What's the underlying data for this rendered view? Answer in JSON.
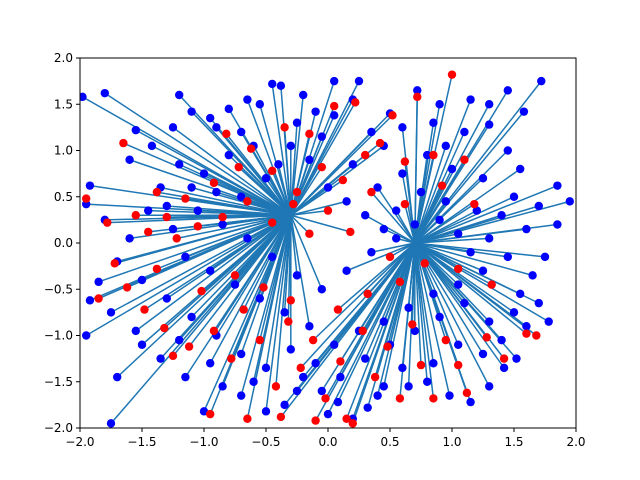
{
  "chart_data": {
    "type": "scatter",
    "title": "",
    "xlabel": "",
    "ylabel": "",
    "xlim": [
      -2.0,
      2.0
    ],
    "ylim": [
      -2.0,
      2.0
    ],
    "grid": false,
    "legend": null,
    "x_ticks": [
      "−2.0",
      "−1.5",
      "−1.0",
      "−0.5",
      "0.0",
      "0.5",
      "1.0",
      "1.5",
      "2.0"
    ],
    "y_ticks": [
      "−2.0",
      "−1.5",
      "−1.0",
      "−0.5",
      "0.0",
      "0.5",
      "1.0",
      "1.5",
      "2.0"
    ],
    "colors": {
      "line": "#1f77b4",
      "blue_points": "#0000ff",
      "red_points": "#ff0000"
    },
    "segments_note": "Each point is joined by a line to one of two hub points (near (0.7, 0.0) and (-0.3, 0.3)); line ends extend beyond the axes.",
    "hubs": [
      [
        0.7,
        0.0
      ],
      [
        -0.3,
        0.3
      ]
    ],
    "series": [
      {
        "name": "",
        "color": "#0000ff",
        "points": [
          [
            -1.98,
            1.58
          ],
          [
            -1.8,
            1.62
          ],
          [
            -1.55,
            1.22
          ],
          [
            -1.42,
            1.05
          ],
          [
            -1.2,
            1.6
          ],
          [
            -1.1,
            1.42
          ],
          [
            -0.95,
            1.35
          ],
          [
            -0.8,
            1.45
          ],
          [
            -0.7,
            1.2
          ],
          [
            -0.55,
            1.5
          ],
          [
            -0.45,
            1.72
          ],
          [
            -0.38,
            1.7
          ],
          [
            -0.25,
            1.3
          ],
          [
            -0.1,
            1.42
          ],
          [
            0.05,
            1.38
          ],
          [
            0.2,
            1.55
          ],
          [
            0.25,
            1.75
          ],
          [
            0.35,
            1.2
          ],
          [
            0.45,
            1.05
          ],
          [
            0.6,
            1.25
          ],
          [
            0.72,
            1.65
          ],
          [
            0.85,
            1.3
          ],
          [
            0.95,
            1.05
          ],
          [
            1.1,
            1.2
          ],
          [
            1.3,
            1.28
          ],
          [
            1.45,
            1.65
          ],
          [
            1.58,
            1.42
          ],
          [
            1.72,
            1.75
          ],
          [
            1.85,
            0.62
          ],
          [
            1.95,
            0.45
          ],
          [
            1.6,
            0.15
          ],
          [
            1.5,
            0.5
          ],
          [
            1.45,
            -0.15
          ],
          [
            1.55,
            -0.55
          ],
          [
            1.7,
            -0.65
          ],
          [
            1.78,
            -0.85
          ],
          [
            1.6,
            -0.9
          ],
          [
            1.52,
            -1.25
          ],
          [
            1.42,
            -1.35
          ],
          [
            1.3,
            -1.55
          ],
          [
            1.15,
            -1.72
          ],
          [
            0.98,
            -1.65
          ],
          [
            0.8,
            -1.5
          ],
          [
            0.6,
            -1.35
          ],
          [
            0.45,
            -1.55
          ],
          [
            0.32,
            -1.78
          ],
          [
            0.2,
            -1.9
          ],
          [
            0.08,
            -1.72
          ],
          [
            -0.05,
            -1.6
          ],
          [
            -0.2,
            -1.45
          ],
          [
            -0.35,
            -1.75
          ],
          [
            -0.5,
            -1.82
          ],
          [
            -0.7,
            -1.65
          ],
          [
            -0.85,
            -1.55
          ],
          [
            -1.0,
            -1.82
          ],
          [
            -1.15,
            -1.45
          ],
          [
            -1.35,
            -1.25
          ],
          [
            -1.5,
            -1.1
          ],
          [
            -1.7,
            -1.45
          ],
          [
            -1.75,
            -1.95
          ],
          [
            -1.95,
            -1.0
          ],
          [
            -1.92,
            -0.62
          ],
          [
            -1.85,
            -0.42
          ],
          [
            -1.7,
            -0.2
          ],
          [
            -1.6,
            0.05
          ],
          [
            -1.45,
            0.35
          ],
          [
            -1.35,
            0.6
          ],
          [
            -1.95,
            0.42
          ],
          [
            -1.92,
            0.62
          ],
          [
            -1.2,
            0.85
          ],
          [
            -1.0,
            0.75
          ],
          [
            -0.8,
            0.95
          ],
          [
            -0.6,
            1.05
          ],
          [
            -0.4,
            0.85
          ],
          [
            -0.15,
            0.9
          ],
          [
            0.0,
            0.6
          ],
          [
            0.15,
            0.45
          ],
          [
            0.3,
            0.3
          ],
          [
            0.45,
            0.15
          ],
          [
            0.55,
            0.35
          ],
          [
            0.75,
            0.55
          ],
          [
            0.9,
            0.25
          ],
          [
            1.05,
            0.1
          ],
          [
            1.15,
            -0.1
          ],
          [
            1.25,
            -0.3
          ],
          [
            1.05,
            -0.45
          ],
          [
            0.85,
            -0.55
          ],
          [
            0.65,
            -0.7
          ],
          [
            0.45,
            -0.85
          ],
          [
            0.25,
            -0.95
          ],
          [
            0.05,
            -1.1
          ],
          [
            -0.15,
            -0.9
          ],
          [
            -0.35,
            -0.75
          ],
          [
            -0.55,
            -0.6
          ],
          [
            -0.75,
            -0.45
          ],
          [
            -0.95,
            -0.3
          ],
          [
            -1.15,
            -0.15
          ],
          [
            -1.25,
            0.15
          ],
          [
            -1.05,
            0.35
          ],
          [
            -0.85,
            0.2
          ],
          [
            -0.65,
            0.05
          ],
          [
            -0.45,
            -0.15
          ],
          [
            -0.25,
            -0.35
          ],
          [
            -0.05,
            -0.5
          ],
          [
            0.15,
            -0.3
          ],
          [
            0.35,
            -0.1
          ],
          [
            0.55,
            0.05
          ],
          [
            0.7,
            0.2
          ],
          [
            0.95,
            0.45
          ],
          [
            1.25,
            0.7
          ],
          [
            1.4,
            0.3
          ],
          [
            1.3,
            0.05
          ],
          [
            1.2,
            0.35
          ],
          [
            1.0,
            0.8
          ],
          [
            0.8,
            0.95
          ],
          [
            0.6,
            0.75
          ],
          [
            0.4,
            0.6
          ],
          [
            0.2,
            0.85
          ],
          [
            -0.05,
            1.15
          ],
          [
            -0.3,
            1.05
          ],
          [
            -0.5,
            0.7
          ],
          [
            -0.7,
            0.5
          ],
          [
            -0.9,
            0.55
          ],
          [
            -1.1,
            0.6
          ],
          [
            -1.3,
            0.4
          ],
          [
            -1.5,
            -0.4
          ],
          [
            -1.3,
            -0.6
          ],
          [
            -1.1,
            -0.8
          ],
          [
            -0.9,
            -1.0
          ],
          [
            -0.7,
            -1.2
          ],
          [
            -0.5,
            -1.35
          ],
          [
            -0.3,
            -1.15
          ],
          [
            -0.1,
            -1.3
          ],
          [
            0.1,
            -1.45
          ],
          [
            0.3,
            -1.25
          ],
          [
            0.5,
            -1.1
          ],
          [
            0.7,
            -0.95
          ],
          [
            0.9,
            -0.8
          ],
          [
            1.1,
            -0.65
          ],
          [
            1.3,
            -0.85
          ],
          [
            1.5,
            -0.75
          ],
          [
            1.65,
            -0.35
          ],
          [
            1.75,
            -0.15
          ],
          [
            1.85,
            0.2
          ],
          [
            1.7,
            0.4
          ],
          [
            1.55,
            0.8
          ],
          [
            1.45,
            1.0
          ],
          [
            1.3,
            1.5
          ],
          [
            1.15,
            1.55
          ],
          [
            0.9,
            1.5
          ],
          [
            0.5,
            1.4
          ],
          [
            0.05,
            1.75
          ],
          [
            -0.2,
            1.6
          ],
          [
            -0.65,
            1.55
          ],
          [
            -0.9,
            1.25
          ],
          [
            -1.25,
            1.25
          ],
          [
            -1.6,
            0.9
          ],
          [
            -1.8,
            0.25
          ],
          [
            -1.75,
            -0.75
          ],
          [
            -1.55,
            -0.95
          ],
          [
            -1.2,
            -1.05
          ],
          [
            -0.95,
            -1.3
          ],
          [
            -0.6,
            -1.5
          ],
          [
            -0.25,
            -1.6
          ],
          [
            0.0,
            -1.85
          ],
          [
            0.4,
            -1.65
          ],
          [
            0.65,
            -1.55
          ],
          [
            0.85,
            -1.3
          ],
          [
            1.05,
            -1.1
          ],
          [
            1.25,
            -1.2
          ],
          [
            1.4,
            -1.05
          ]
        ]
      },
      {
        "name": "",
        "color": "#ff0000",
        "points": [
          [
            -1.95,
            0.48
          ],
          [
            -1.78,
            0.22
          ],
          [
            -1.65,
            1.08
          ],
          [
            -1.55,
            0.3
          ],
          [
            -1.45,
            0.12
          ],
          [
            -1.38,
            0.55
          ],
          [
            -1.3,
            0.28
          ],
          [
            -1.22,
            0.05
          ],
          [
            -1.15,
            0.48
          ],
          [
            -1.05,
            0.18
          ],
          [
            -0.92,
            0.65
          ],
          [
            -0.82,
            1.18
          ],
          [
            -0.72,
            0.82
          ],
          [
            -0.62,
            1.02
          ],
          [
            -0.45,
            0.78
          ],
          [
            -0.35,
            1.25
          ],
          [
            -0.25,
            0.55
          ],
          [
            -0.15,
            1.18
          ],
          [
            -0.05,
            0.82
          ],
          [
            0.05,
            1.48
          ],
          [
            0.12,
            0.68
          ],
          [
            0.22,
            1.52
          ],
          [
            0.3,
            0.95
          ],
          [
            0.42,
            1.08
          ],
          [
            0.52,
            1.38
          ],
          [
            0.62,
            0.88
          ],
          [
            0.72,
            1.58
          ],
          [
            0.85,
            0.95
          ],
          [
            1.0,
            1.82
          ],
          [
            1.1,
            0.9
          ],
          [
            -1.85,
            -0.6
          ],
          [
            -1.72,
            -0.22
          ],
          [
            -1.62,
            -0.48
          ],
          [
            -1.48,
            -0.72
          ],
          [
            -1.32,
            -0.92
          ],
          [
            -1.25,
            -1.22
          ],
          [
            -1.12,
            -1.12
          ],
          [
            -1.02,
            -0.52
          ],
          [
            -0.92,
            -0.95
          ],
          [
            -0.78,
            -1.25
          ],
          [
            -0.68,
            -0.72
          ],
          [
            -0.55,
            -1.05
          ],
          [
            -0.42,
            -1.55
          ],
          [
            -0.32,
            -0.85
          ],
          [
            -0.22,
            -1.35
          ],
          [
            -0.12,
            -1.05
          ],
          [
            -0.02,
            -1.68
          ],
          [
            0.1,
            -1.28
          ],
          [
            0.2,
            -1.95
          ],
          [
            0.28,
            -0.95
          ],
          [
            0.38,
            -1.45
          ],
          [
            0.48,
            -1.12
          ],
          [
            0.58,
            -1.68
          ],
          [
            0.68,
            -0.88
          ],
          [
            0.75,
            -1.32
          ],
          [
            0.85,
            -1.68
          ],
          [
            0.95,
            -1.05
          ],
          [
            1.05,
            -1.32
          ],
          [
            1.12,
            -1.62
          ],
          [
            1.28,
            -1.02
          ],
          [
            1.42,
            -1.25
          ],
          [
            1.6,
            -0.98
          ],
          [
            1.68,
            -1.0
          ],
          [
            -0.95,
            -1.85
          ],
          [
            -0.65,
            -1.9
          ],
          [
            -0.38,
            -1.88
          ],
          [
            -0.1,
            -1.92
          ],
          [
            0.15,
            -1.9
          ],
          [
            -0.85,
            0.28
          ],
          [
            -0.65,
            0.45
          ],
          [
            -0.45,
            0.22
          ],
          [
            -0.28,
            0.42
          ],
          [
            -0.15,
            0.1
          ],
          [
            0.0,
            0.35
          ],
          [
            0.18,
            0.12
          ],
          [
            0.35,
            0.55
          ],
          [
            0.5,
            -0.15
          ],
          [
            0.62,
            0.42
          ],
          [
            0.78,
            -0.22
          ],
          [
            0.92,
            0.62
          ],
          [
            1.05,
            -0.28
          ],
          [
            1.18,
            0.42
          ],
          [
            1.32,
            -0.45
          ],
          [
            -1.38,
            -0.28
          ],
          [
            -0.75,
            -0.35
          ],
          [
            -0.52,
            -0.48
          ],
          [
            -0.3,
            -0.62
          ],
          [
            0.08,
            -0.72
          ],
          [
            0.32,
            -0.55
          ],
          [
            0.58,
            -0.42
          ]
        ]
      }
    ]
  }
}
